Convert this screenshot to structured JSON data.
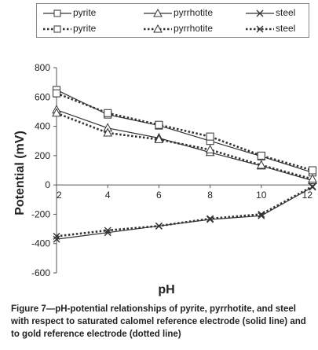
{
  "chart_data": {
    "type": "line",
    "x": [
      2,
      4,
      6,
      8,
      10,
      12
    ],
    "xlabel": "pH",
    "ylabel": "Potential (mV)",
    "xlim": [
      2,
      12
    ],
    "ylim": [
      -600,
      800
    ],
    "yticks": [
      800,
      600,
      400,
      200,
      0,
      -200,
      -400,
      -600
    ],
    "xticks": [
      2,
      4,
      6,
      8,
      10,
      12
    ],
    "grid": false,
    "legend_position": "top",
    "series": [
      {
        "name": "pyrite",
        "marker": "square",
        "dash": "solid",
        "values": [
          648,
          480,
          405,
          300,
          195,
          85
        ]
      },
      {
        "name": "pyrrhotite",
        "marker": "triangle",
        "dash": "solid",
        "values": [
          512,
          388,
          320,
          222,
          130,
          30
        ]
      },
      {
        "name": "steel",
        "marker": "x",
        "dash": "solid",
        "values": [
          -370,
          -325,
          -280,
          -235,
          -210,
          -15
        ]
      },
      {
        "name": "pyrite",
        "marker": "square",
        "dash": "dotted",
        "values": [
          625,
          490,
          410,
          330,
          200,
          100
        ]
      },
      {
        "name": "pyrrhotite",
        "marker": "triangle",
        "dash": "dotted",
        "values": [
          490,
          355,
          310,
          240,
          135,
          40
        ]
      },
      {
        "name": "steel",
        "marker": "x",
        "dash": "dotted",
        "values": [
          -350,
          -310,
          -280,
          -230,
          -200,
          -10
        ]
      }
    ],
    "caption": "Figure 7—pH-potential relationships of pyrite, pyrrhotite, and steel with respect to saturated calomel reference electrode (solid line) and to gold reference electrode (dotted line)"
  },
  "colors": {
    "line": "#333333",
    "marker_fill": "#ffffff",
    "axis": "#555555"
  }
}
